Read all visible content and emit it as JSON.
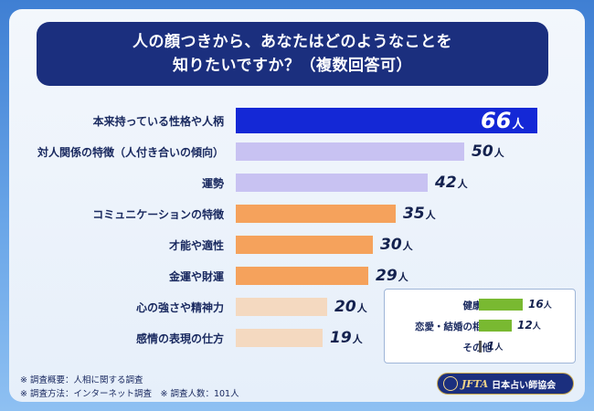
{
  "title_line1": "人の顔つきから、あなたはどのようなことを",
  "title_line2": "知りたいですか？（複数回答可）",
  "unit": "人",
  "chart_data": {
    "type": "bar",
    "orientation": "horizontal",
    "categories": [
      "本来持っている性格や人柄",
      "対人関係の特徴（人付き合いの傾向）",
      "運勢",
      "コミュニケーションの特徴",
      "才能や適性",
      "金運や財運",
      "心の強さや精神力",
      "感情の表現の仕方"
    ],
    "values": [
      66,
      50,
      42,
      35,
      30,
      29,
      20,
      19
    ],
    "colors": [
      "#1428d6",
      "#c8c2f2",
      "#c8c2f2",
      "#f5a25c",
      "#f5a25c",
      "#f5a25c",
      "#f4d9c0",
      "#f4d9c0"
    ],
    "xlim": [
      0,
      66
    ],
    "inset": {
      "categories": [
        "健康面",
        "恋愛・結婚の相性",
        "その他"
      ],
      "values": [
        16,
        12,
        1
      ],
      "color": "#79b931"
    }
  },
  "footer": {
    "line1": "※ 調査概要：人相に関する調査",
    "line2": "※ 調査方法：インターネット調査　※ 調査人数：101人"
  },
  "logo": {
    "brand": "JFTA",
    "name": "日本占い師協会"
  }
}
